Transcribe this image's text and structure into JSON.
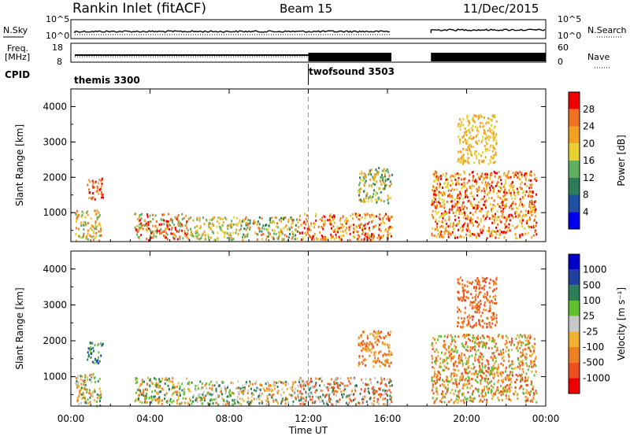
{
  "header": {
    "title": "Rankin Inlet (fitACF)",
    "beam": "Beam 15",
    "date": "11/Dec/2015"
  },
  "top_panels": {
    "nsky_label": "N.Sky",
    "nsearch_label": "N.Search",
    "freq_label_1": "Freq.",
    "freq_label_2": "[MHz]",
    "nave_label": "Nave",
    "cpid_label": "CPID",
    "noise_ticks_left": [
      "10^5",
      "10^0"
    ],
    "noise_ticks_right": [
      "10^5",
      "10^0"
    ],
    "freq_ticks": [
      "18",
      "8"
    ],
    "nave_ticks": [
      "60",
      "0"
    ]
  },
  "cpid_programs": [
    {
      "name": "themis 3300",
      "start_hour": 0,
      "end_hour": 12
    },
    {
      "name": "twofsound 3503",
      "start_hour": 12,
      "end_hour": 24
    }
  ],
  "colors": {
    "power_scale": [
      "#0000ee",
      "#1e4fa0",
      "#2e7d5a",
      "#5fb05f",
      "#e8d030",
      "#f2a020",
      "#f07020",
      "#ee0000"
    ],
    "velocity_scale": [
      "#ee0000",
      "#f05020",
      "#f08020",
      "#f0b030",
      "#c8c8c8",
      "#60c030",
      "#2e7d5a",
      "#2040a0",
      "#0000cc"
    ]
  },
  "chart_data": [
    {
      "type": "heatmap",
      "panel": "power",
      "ylabel": "Slant Range [km]",
      "xlim_hours": [
        0,
        24
      ],
      "ylim": [
        180,
        4500
      ],
      "yticks": [
        "1000",
        "2000",
        "3000",
        "4000"
      ],
      "colorbar_label": "Power [dB]",
      "colorbar_ticks": [
        "28",
        "24",
        "20",
        "16",
        "12",
        "8",
        "4"
      ],
      "blocks": [
        {
          "t0": 0.2,
          "t1": 1.5,
          "r0": 200,
          "r1": 1100,
          "c": [
            3,
            4,
            5,
            6
          ]
        },
        {
          "t0": 0.8,
          "t1": 1.6,
          "r0": 1400,
          "r1": 2000,
          "c": [
            5,
            6,
            7
          ]
        },
        {
          "t0": 3.2,
          "t1": 6.0,
          "r0": 250,
          "r1": 1000,
          "c": [
            3,
            5,
            6,
            7
          ]
        },
        {
          "t0": 6.0,
          "t1": 8.5,
          "r0": 250,
          "r1": 900,
          "c": [
            3,
            4,
            5
          ]
        },
        {
          "t0": 8.5,
          "t1": 11.5,
          "r0": 250,
          "r1": 900,
          "c": [
            2,
            3,
            4,
            5,
            6
          ]
        },
        {
          "t0": 11.5,
          "t1": 16.2,
          "r0": 250,
          "r1": 1000,
          "c": [
            4,
            5,
            6,
            7
          ]
        },
        {
          "t0": 14.5,
          "t1": 16.2,
          "r0": 1300,
          "r1": 2300,
          "c": [
            2,
            3,
            4,
            5
          ]
        },
        {
          "t0": 18.2,
          "t1": 23.5,
          "r0": 300,
          "r1": 2200,
          "c": [
            4,
            5,
            6,
            7
          ]
        },
        {
          "t0": 19.5,
          "t1": 21.5,
          "r0": 2400,
          "r1": 3800,
          "c": [
            4,
            5
          ]
        }
      ]
    },
    {
      "type": "heatmap",
      "panel": "velocity",
      "ylabel": "Slant Range [km]",
      "xlabel": "Time UT",
      "xticks": [
        "00:00",
        "04:00",
        "08:00",
        "12:00",
        "16:00",
        "20:00",
        "00:00"
      ],
      "xlim_hours": [
        0,
        24
      ],
      "ylim": [
        180,
        4500
      ],
      "yticks": [
        "1000",
        "2000",
        "3000",
        "4000"
      ],
      "colorbar_label": "Velocity [m s⁻¹]",
      "colorbar_ticks": [
        "1000",
        "500",
        "100",
        "25",
        "-25",
        "-100",
        "-500",
        "-1000"
      ],
      "blocks": [
        {
          "t0": 0.2,
          "t1": 1.5,
          "r0": 200,
          "r1": 1100,
          "c": [
            2,
            3,
            4,
            5,
            6
          ]
        },
        {
          "t0": 0.8,
          "t1": 1.6,
          "r0": 1400,
          "r1": 2000,
          "c": [
            5,
            6,
            7
          ]
        },
        {
          "t0": 3.2,
          "t1": 6.0,
          "r0": 250,
          "r1": 1000,
          "c": [
            2,
            3,
            5,
            6
          ]
        },
        {
          "t0": 6.0,
          "t1": 8.5,
          "r0": 250,
          "r1": 900,
          "c": [
            2,
            4,
            5,
            6
          ]
        },
        {
          "t0": 8.5,
          "t1": 11.5,
          "r0": 250,
          "r1": 900,
          "c": [
            2,
            3,
            4,
            6
          ]
        },
        {
          "t0": 11.5,
          "t1": 16.2,
          "r0": 250,
          "r1": 1000,
          "c": [
            1,
            2,
            4,
            6
          ]
        },
        {
          "t0": 14.5,
          "t1": 16.2,
          "r0": 1300,
          "r1": 2300,
          "c": [
            1,
            2,
            3
          ]
        },
        {
          "t0": 18.2,
          "t1": 23.5,
          "r0": 300,
          "r1": 2200,
          "c": [
            1,
            2,
            3,
            5
          ]
        },
        {
          "t0": 19.5,
          "t1": 21.5,
          "r0": 2400,
          "r1": 3800,
          "c": [
            1,
            2
          ]
        }
      ]
    }
  ]
}
